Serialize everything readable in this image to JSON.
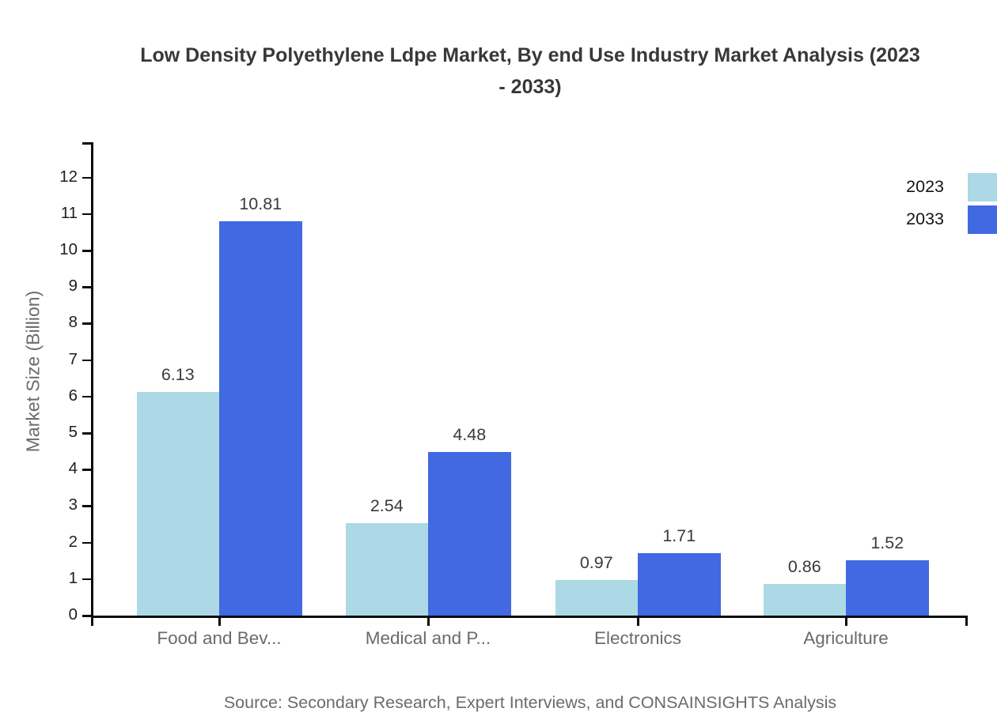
{
  "chart_data": {
    "type": "bar",
    "title": "Low Density Polyethylene Ldpe Market, By end Use Industry Market Analysis (2023 - 2033)",
    "ylabel": "Market Size (Billion)",
    "categories": [
      "Food and Bev...",
      "Medical and P...",
      "Electronics",
      "Agriculture"
    ],
    "series": [
      {
        "name": "2023",
        "color": "#ADD8E6",
        "values": [
          6.13,
          2.54,
          0.97,
          0.86
        ]
      },
      {
        "name": "2033",
        "color": "#4169E1",
        "values": [
          10.81,
          4.48,
          1.71,
          1.52
        ]
      }
    ],
    "ylim": [
      0,
      12
    ],
    "ytick_step": 1,
    "grid": false,
    "legend_position": "top-right",
    "value_labels": true,
    "source": "Source: Secondary Research, Expert Interviews, and CONSAINSIGHTS Analysis"
  }
}
